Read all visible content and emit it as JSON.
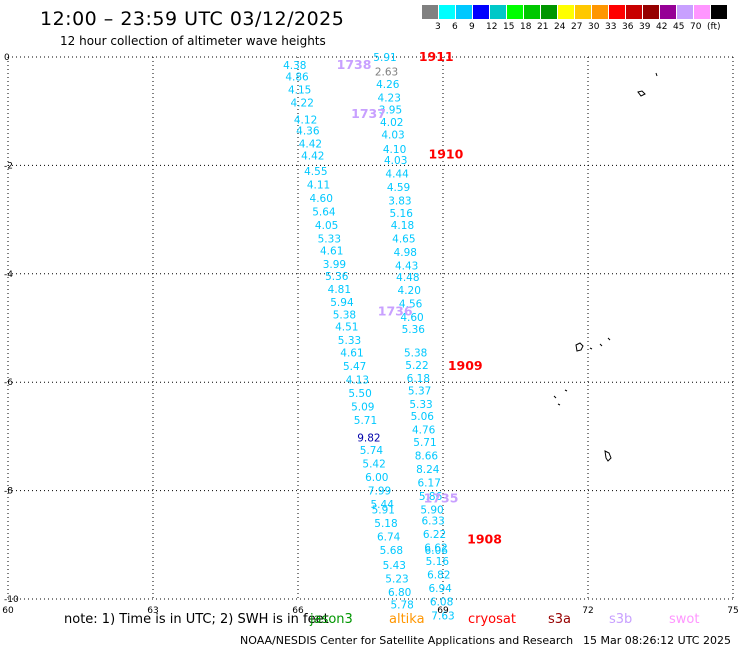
{
  "header": {
    "title": "12:00 – 23:59 UTC 03/12/2025",
    "subtitle": "12 hour collection of altimeter wave heights"
  },
  "colorbar": {
    "bins": [
      {
        "label": "3",
        "color": "#00ffff"
      },
      {
        "label": "6",
        "color": "#00c8ff"
      },
      {
        "label": "9",
        "color": "#0000ff"
      },
      {
        "label": "12",
        "color": "#00c8c8"
      },
      {
        "label": "15",
        "color": "#00ff00"
      },
      {
        "label": "18",
        "color": "#00c800"
      },
      {
        "label": "21",
        "color": "#009600"
      },
      {
        "label": "24",
        "color": "#ffff00"
      },
      {
        "label": "27",
        "color": "#ffc800"
      },
      {
        "label": "30",
        "color": "#ff9600"
      },
      {
        "label": "33",
        "color": "#ff0000"
      },
      {
        "label": "36",
        "color": "#c80000"
      },
      {
        "label": "39",
        "color": "#960000"
      },
      {
        "label": "42",
        "color": "#960096"
      },
      {
        "label": "45",
        "color": "#c8a0ff"
      },
      {
        "label": "70",
        "color": "#ff96ff"
      },
      {
        "label": "(ft)",
        "color": "#000000"
      }
    ],
    "first_color": "#808080"
  },
  "map": {
    "lon_ticks": [
      "60",
      "63",
      "66",
      "69",
      "72",
      "75"
    ],
    "lat_ticks": [
      "0",
      "-2",
      "-4",
      "-6",
      "-8",
      "-10"
    ],
    "lon_range": [
      60,
      75
    ],
    "lat_range": [
      -10,
      0
    ]
  },
  "passes": [
    {
      "label": "1911",
      "color": "#ff0000",
      "lon": 68.5,
      "lat": 0.0
    },
    {
      "label": "1910",
      "color": "#ff0000",
      "lon": 68.7,
      "lat": -1.8
    },
    {
      "label": "1909",
      "color": "#ff0000",
      "lon": 69.1,
      "lat": -5.7
    },
    {
      "label": "1908",
      "color": "#ff0000",
      "lon": 69.5,
      "lat": -8.9
    },
    {
      "label": "1738",
      "color": "#c8a0ff",
      "lon": 66.8,
      "lat": -0.15
    },
    {
      "label": "1737",
      "color": "#c8a0ff",
      "lon": 67.1,
      "lat": -1.05
    },
    {
      "label": "1736",
      "color": "#c8a0ff",
      "lon": 67.65,
      "lat": -4.7
    },
    {
      "label": "1735",
      "color": "#c8a0ff",
      "lon": 68.6,
      "lat": -8.15
    }
  ],
  "wave_heights": {
    "track_a": [
      [
        "4.38",
        -0.15
      ],
      [
        "4.86",
        -0.36
      ],
      [
        "4.15",
        -0.6
      ],
      [
        "4.22",
        -0.84
      ],
      [
        "4.12",
        -1.15
      ],
      [
        "4.36",
        -1.36
      ],
      [
        "4.42",
        -1.6
      ],
      [
        "4.42",
        -1.82
      ],
      [
        "4.55",
        -2.1
      ],
      [
        "4.11",
        -2.35
      ],
      [
        "4.60",
        -2.6
      ],
      [
        "5.64",
        -2.85
      ],
      [
        "4.05",
        -3.1
      ],
      [
        "5.33",
        -3.35
      ],
      [
        "4.61",
        -3.57
      ],
      [
        "3.99",
        -3.82
      ],
      [
        "5.36",
        -4.04
      ],
      [
        "4.81",
        -4.28
      ],
      [
        "5.94",
        -4.52
      ],
      [
        "5.38",
        -4.75
      ],
      [
        "4.51",
        -4.97
      ],
      [
        "5.33",
        -5.22
      ],
      [
        "4.61",
        -5.45
      ],
      [
        "5.47",
        -5.7
      ],
      [
        "4.13",
        -5.95
      ],
      [
        "5.50",
        -6.2
      ],
      [
        "5.09",
        -6.45
      ],
      [
        "5.71",
        -6.7
      ],
      [
        "9.82",
        -7.02
      ],
      [
        "5.74",
        -7.25
      ],
      [
        "5.42",
        -7.5
      ],
      [
        "6.00",
        -7.75
      ],
      [
        "7.99",
        -8.0
      ],
      [
        "5.44",
        -8.25
      ],
      [
        "5.91",
        -8.35
      ],
      [
        "5.18",
        -8.6
      ],
      [
        "6.74",
        -8.85
      ],
      [
        "5.68",
        -9.1
      ],
      [
        "5.43",
        -9.37
      ],
      [
        "5.23",
        -9.62
      ],
      [
        "6.80",
        -9.87
      ],
      [
        "5.78",
        -10.1
      ]
    ],
    "track_b": [
      [
        "5.91",
        0.0
      ],
      [
        "2.63",
        -0.27
      ],
      [
        "4.26",
        -0.5
      ],
      [
        "4.23",
        -0.75
      ],
      [
        "3.95",
        -0.97
      ],
      [
        "4.02",
        -1.2
      ],
      [
        "4.03",
        -1.43
      ],
      [
        "4.10",
        -1.7
      ],
      [
        "4.03",
        -1.9
      ],
      [
        "4.44",
        -2.15
      ],
      [
        "4.59",
        -2.4
      ],
      [
        "3.83",
        -2.65
      ],
      [
        "5.16",
        -2.88
      ],
      [
        "4.18",
        -3.1
      ],
      [
        "4.65",
        -3.35
      ],
      [
        "4.98",
        -3.6
      ],
      [
        "4.43",
        -3.85
      ],
      [
        "4.48",
        -4.06
      ],
      [
        "4.20",
        -4.3
      ],
      [
        "4.56",
        -4.55
      ],
      [
        "4.60",
        -4.8
      ],
      [
        "5.36",
        -5.02
      ],
      [
        "5.38",
        -5.45
      ],
      [
        "5.22",
        -5.68
      ],
      [
        "6.18",
        -5.92
      ],
      [
        "5.37",
        -6.15
      ],
      [
        "5.33",
        -6.4
      ],
      [
        "5.06",
        -6.62
      ],
      [
        "4.76",
        -6.87
      ],
      [
        "5.71",
        -7.1
      ],
      [
        "8.66",
        -7.35
      ],
      [
        "8.24",
        -7.6
      ],
      [
        "6.17",
        -7.85
      ],
      [
        "5.86",
        -8.1
      ],
      [
        "5.90",
        -8.35
      ],
      [
        "6.33",
        -8.55
      ],
      [
        "6.22",
        -8.8
      ],
      [
        "6.62",
        -9.05
      ],
      [
        "6.06",
        -9.1
      ],
      [
        "5.16",
        -9.3
      ],
      [
        "6.82",
        -9.55
      ],
      [
        "6.94",
        -9.8
      ],
      [
        "6.08",
        -10.05
      ],
      [
        "7.63",
        -10.3
      ]
    ]
  },
  "footer": {
    "note": "note: 1) Time is in UTC; 2) SWH is in feet",
    "satellites": [
      {
        "label": "jason3",
        "color": "#009600"
      },
      {
        "label": "altika",
        "color": "#ff9600"
      },
      {
        "label": "cryosat",
        "color": "#ff0000"
      },
      {
        "label": "s3a",
        "color": "#960000"
      },
      {
        "label": "s3b",
        "color": "#c8a0ff"
      },
      {
        "label": "swot",
        "color": "#ff96ff"
      }
    ],
    "credit": "NOAA/NESDIS Center for Satellite Applications and Research",
    "generated": "15 Mar 08:26:12 UTC 2025"
  }
}
